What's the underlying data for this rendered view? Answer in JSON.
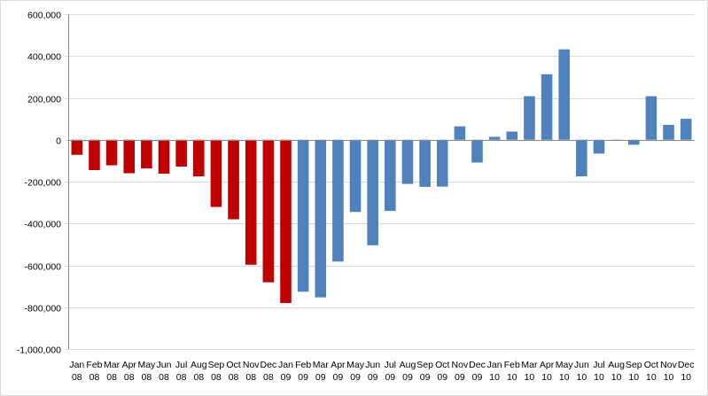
{
  "chart_data": {
    "type": "bar",
    "title": "",
    "xlabel": "",
    "ylabel": "",
    "ylim": [
      -1000000,
      600000
    ],
    "yticks": [
      600000,
      400000,
      200000,
      0,
      -200000,
      -400000,
      -600000,
      -800000,
      -1000000
    ],
    "ytick_labels": [
      "600,000",
      "400,000",
      "200,000",
      "0",
      "-200,000",
      "-400,000",
      "-600,000",
      "-800,000",
      "-1,000,000"
    ],
    "grid": true,
    "legend": "none",
    "categories": [
      [
        "Jan",
        "08"
      ],
      [
        "Feb",
        "08"
      ],
      [
        "Mar",
        "08"
      ],
      [
        "Apr",
        "08"
      ],
      [
        "May",
        "08"
      ],
      [
        "Jun",
        "08"
      ],
      [
        "Jul",
        "08"
      ],
      [
        "Aug",
        "08"
      ],
      [
        "Sep",
        "08"
      ],
      [
        "Oct",
        "08"
      ],
      [
        "Nov",
        "08"
      ],
      [
        "Dec",
        "08"
      ],
      [
        "Jan",
        "09"
      ],
      [
        "Feb",
        "09"
      ],
      [
        "Mar",
        "09"
      ],
      [
        "Apr",
        "09"
      ],
      [
        "May",
        "09"
      ],
      [
        "Jun",
        "09"
      ],
      [
        "Jul",
        "09"
      ],
      [
        "Aug",
        "09"
      ],
      [
        "Sep",
        "09"
      ],
      [
        "Oct",
        "09"
      ],
      [
        "Nov",
        "09"
      ],
      [
        "Dec",
        "09"
      ],
      [
        "Jan",
        "10"
      ],
      [
        "Feb",
        "10"
      ],
      [
        "Mar",
        "10"
      ],
      [
        "Apr",
        "10"
      ],
      [
        "May",
        "10"
      ],
      [
        "Jun",
        "10"
      ],
      [
        "Jul",
        "10"
      ],
      [
        "Aug",
        "10"
      ],
      [
        "Sep",
        "10"
      ],
      [
        "Oct",
        "10"
      ],
      [
        "Nov",
        "10"
      ],
      [
        "Dec",
        "10"
      ]
    ],
    "values": [
      -72000,
      -145000,
      -122000,
      -160000,
      -137000,
      -162000,
      -128000,
      -175000,
      -321000,
      -380000,
      -597000,
      -681000,
      -780000,
      -726000,
      -753000,
      -582000,
      -345000,
      -504000,
      -340000,
      -211000,
      -225000,
      -224000,
      64000,
      -109000,
      14000,
      39000,
      208000,
      313000,
      432000,
      -175000,
      -66000,
      -1000,
      -24000,
      208000,
      71000,
      100000
    ],
    "bar_colors": [
      "#c00000",
      "#c00000",
      "#c00000",
      "#c00000",
      "#c00000",
      "#c00000",
      "#c00000",
      "#c00000",
      "#c00000",
      "#c00000",
      "#c00000",
      "#c00000",
      "#c00000",
      "#4f81bd",
      "#4f81bd",
      "#4f81bd",
      "#4f81bd",
      "#4f81bd",
      "#4f81bd",
      "#4f81bd",
      "#4f81bd",
      "#4f81bd",
      "#4f81bd",
      "#4f81bd",
      "#4f81bd",
      "#4f81bd",
      "#4f81bd",
      "#4f81bd",
      "#4f81bd",
      "#4f81bd",
      "#4f81bd",
      "#4f81bd",
      "#4f81bd",
      "#4f81bd",
      "#4f81bd",
      "#4f81bd"
    ],
    "colors": {
      "gridline": "#d9d9d9",
      "axis": "#868686",
      "red_bars": "#c00000",
      "blue_bars": "#4f81bd"
    }
  }
}
